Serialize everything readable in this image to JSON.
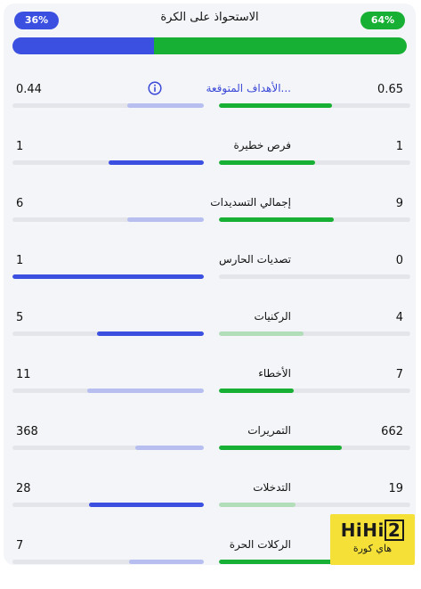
{
  "possession": {
    "title": "الاستحواذ على الكرة",
    "left_label": "36%",
    "right_label": "64%",
    "left_fraction": 0.36,
    "right_fraction": 0.64
  },
  "colors": {
    "blue": "#3b4fe0",
    "blue_light": "#b7bff0",
    "green": "#18b034",
    "green_light": "#b1ddb8",
    "track": "#e3e5ea"
  },
  "stats": [
    {
      "label": "الأهداف المتوقعة...",
      "left": "0.44",
      "right": "0.65",
      "left_fraction": 0.4,
      "right_fraction": 0.59,
      "left_strong": false,
      "right_strong": true,
      "link": true
    },
    {
      "label": "فرص خطيرة",
      "left": "1",
      "right": "1",
      "left_fraction": 0.5,
      "right_fraction": 0.5,
      "left_strong": true,
      "right_strong": true,
      "link": false
    },
    {
      "label": "إجمالي التسديدات",
      "left": "6",
      "right": "9",
      "left_fraction": 0.4,
      "right_fraction": 0.6,
      "left_strong": false,
      "right_strong": true,
      "link": false
    },
    {
      "label": "تصديات الحارس",
      "left": "1",
      "right": "0",
      "left_fraction": 1.0,
      "right_fraction": 0.0,
      "left_strong": true,
      "right_strong": false,
      "link": false
    },
    {
      "label": "الركنيات",
      "left": "5",
      "right": "4",
      "left_fraction": 0.56,
      "right_fraction": 0.44,
      "left_strong": true,
      "right_strong": false,
      "link": false
    },
    {
      "label": "الأخطاء",
      "left": "11",
      "right": "7",
      "left_fraction": 0.61,
      "right_fraction": 0.39,
      "left_strong": false,
      "right_strong": true,
      "link": false
    },
    {
      "label": "التمريرات",
      "left": "368",
      "right": "662",
      "left_fraction": 0.36,
      "right_fraction": 0.64,
      "left_strong": false,
      "right_strong": true,
      "link": false
    },
    {
      "label": "التدخلات",
      "left": "28",
      "right": "19",
      "left_fraction": 0.6,
      "right_fraction": 0.4,
      "left_strong": true,
      "right_strong": false,
      "link": false
    },
    {
      "label": "الركلات الحرة",
      "left": "7",
      "right": "",
      "left_fraction": 0.39,
      "right_fraction": 0.61,
      "left_strong": false,
      "right_strong": true,
      "link": false
    }
  ],
  "watermark": {
    "brand": "HiHi2",
    "sub": "هاي كورة"
  }
}
